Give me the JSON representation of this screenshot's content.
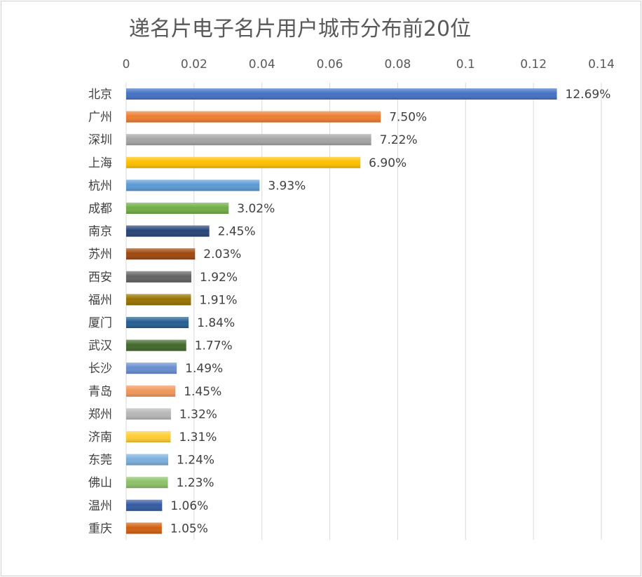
{
  "chart_data": {
    "type": "bar",
    "orientation": "horizontal",
    "title": "递名片电子名片用户城市分布前20位",
    "xlabel": "",
    "ylabel": "",
    "xlim": [
      0,
      0.14
    ],
    "x_ticks": [
      "0",
      "0.02",
      "0.04",
      "0.06",
      "0.08",
      "0.1",
      "0.12",
      "0.14"
    ],
    "x_tick_values": [
      0,
      0.02,
      0.04,
      0.06,
      0.08,
      0.1,
      0.12,
      0.14
    ],
    "axis_position": "top",
    "grid": true,
    "legend": "none",
    "categories": [
      "北京",
      "广州",
      "深圳",
      "上海",
      "杭州",
      "成都",
      "南京",
      "苏州",
      "西安",
      "福州",
      "厦门",
      "武汉",
      "长沙",
      "青岛",
      "郑州",
      "济南",
      "东莞",
      "佛山",
      "温州",
      "重庆"
    ],
    "values": [
      0.1269,
      0.075,
      0.0722,
      0.069,
      0.0393,
      0.0302,
      0.0245,
      0.0203,
      0.0192,
      0.0191,
      0.0184,
      0.0177,
      0.0149,
      0.0145,
      0.0132,
      0.0131,
      0.0124,
      0.0123,
      0.0106,
      0.0105
    ],
    "data_labels": [
      "12.69%",
      "7.50%",
      "7.22%",
      "6.90%",
      "3.93%",
      "3.02%",
      "2.45%",
      "2.03%",
      "1.92%",
      "1.91%",
      "1.84%",
      "1.77%",
      "1.49%",
      "1.45%",
      "1.32%",
      "1.31%",
      "1.24%",
      "1.23%",
      "1.06%",
      "1.05%"
    ],
    "colors": [
      "#4472C4",
      "#ED7D31",
      "#A5A5A5",
      "#FFC000",
      "#5B9BD5",
      "#70AD47",
      "#264478",
      "#9E480E",
      "#636363",
      "#997300",
      "#255E91",
      "#43682B",
      "#698ED0",
      "#F1975A",
      "#B7B7B7",
      "#FFCD33",
      "#7CAFDD",
      "#8CC168",
      "#335AA1",
      "#D26012"
    ]
  }
}
